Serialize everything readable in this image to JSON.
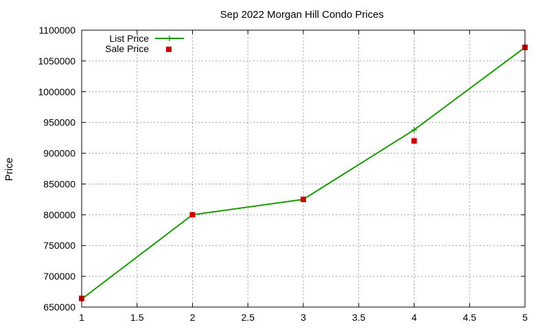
{
  "chart_data": {
    "type": "line",
    "title": "Sep 2022 Morgan Hill Condo Prices",
    "xlabel": "",
    "ylabel": "Price",
    "xlim": [
      1,
      5
    ],
    "ylim": [
      650000,
      1100000
    ],
    "xticks": [
      1,
      1.5,
      2,
      2.5,
      3,
      3.5,
      4,
      4.5,
      5
    ],
    "xtick_labels": [
      "1",
      "1.5",
      "2",
      "2.5",
      "3",
      "3.5",
      "4",
      "4.5",
      "5"
    ],
    "yticks": [
      650000,
      700000,
      750000,
      800000,
      850000,
      900000,
      950000,
      1000000,
      1050000,
      1100000
    ],
    "ytick_labels": [
      "650000",
      "700000",
      "750000",
      "800000",
      "850000",
      "900000",
      "950000",
      "1000000",
      "1050000",
      "1100000"
    ],
    "grid": true,
    "legend_position": "top-left",
    "series": [
      {
        "name": "List Price",
        "style": "line-with-plus-markers",
        "color": "#1a9a00",
        "x": [
          1,
          2,
          3,
          4,
          5
        ],
        "y": [
          663000,
          800000,
          825000,
          938000,
          1072000
        ]
      },
      {
        "name": "Sale Price",
        "style": "square-markers",
        "color": "#cc0000",
        "x": [
          1,
          2,
          3,
          4,
          5
        ],
        "y": [
          664000,
          800000,
          825000,
          920000,
          1072000
        ]
      }
    ]
  }
}
